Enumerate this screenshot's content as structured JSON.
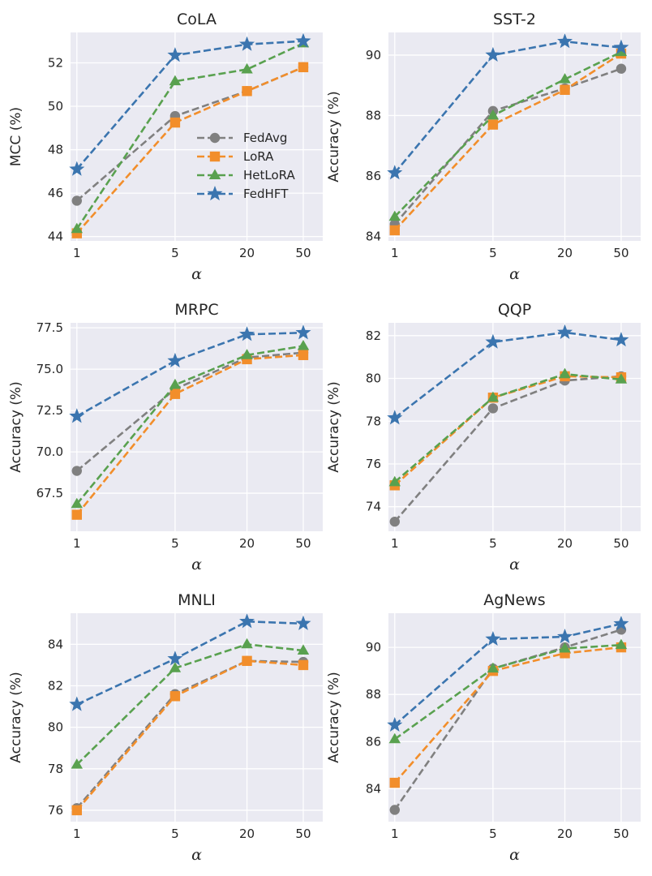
{
  "chart_data": {
    "type": "line",
    "xlabel": "α",
    "categories": [
      "1",
      "5",
      "20",
      "50"
    ],
    "series_styles": [
      {
        "name": "FedAvg",
        "color": "#808080",
        "marker": "circle"
      },
      {
        "name": "LoRA",
        "color": "#f28e2b",
        "marker": "square"
      },
      {
        "name": "HetLoRA",
        "color": "#59a14f",
        "marker": "triangle"
      },
      {
        "name": "FedHFT",
        "color": "#3b75af",
        "marker": "star"
      }
    ],
    "legend": {
      "location": "center-right",
      "panel": "CoLA"
    },
    "panels": [
      {
        "title": "CoLA",
        "ylabel": "MCC (%)",
        "ylim": [
          43.8,
          53.4
        ],
        "yticks": [
          "44",
          "46",
          "48",
          "50",
          "52"
        ],
        "series": [
          {
            "name": "FedAvg",
            "values": [
              45.65,
              49.55,
              50.7,
              51.8
            ]
          },
          {
            "name": "LoRA",
            "values": [
              44.15,
              49.25,
              50.7,
              51.8
            ]
          },
          {
            "name": "HetLoRA",
            "values": [
              44.35,
              51.15,
              51.7,
              52.9
            ]
          },
          {
            "name": "FedHFT",
            "values": [
              47.1,
              52.35,
              52.85,
              53.0
            ]
          }
        ]
      },
      {
        "title": "SST-2",
        "ylabel": "Accuracy (%)",
        "ylim": [
          83.85,
          90.75
        ],
        "yticks": [
          "84",
          "86",
          "88",
          "90"
        ],
        "series": [
          {
            "name": "FedAvg",
            "values": [
              84.4,
              88.15,
              88.9,
              89.55
            ]
          },
          {
            "name": "LoRA",
            "values": [
              84.2,
              87.7,
              88.85,
              90.05
            ]
          },
          {
            "name": "HetLoRA",
            "values": [
              84.65,
              88.0,
              89.2,
              90.1
            ]
          },
          {
            "name": "FedHFT",
            "values": [
              86.1,
              90.0,
              90.45,
              90.25
            ]
          }
        ]
      },
      {
        "title": "MRPC",
        "ylabel": "Accuracy (%)",
        "ylim": [
          65.2,
          77.8
        ],
        "yticks": [
          "67.5",
          "70.0",
          "72.5",
          "75.0",
          "77.5"
        ],
        "series": [
          {
            "name": "FedAvg",
            "values": [
              68.85,
              73.8,
              75.7,
              76.0
            ]
          },
          {
            "name": "LoRA",
            "values": [
              66.2,
              73.5,
              75.6,
              75.85
            ]
          },
          {
            "name": "HetLoRA",
            "values": [
              66.85,
              74.05,
              75.85,
              76.4
            ]
          },
          {
            "name": "FedHFT",
            "values": [
              72.15,
              75.5,
              77.1,
              77.2
            ]
          }
        ]
      },
      {
        "title": "QQP",
        "ylabel": "Accuracy (%)",
        "ylim": [
          72.85,
          82.6
        ],
        "yticks": [
          "74",
          "76",
          "78",
          "80",
          "82"
        ],
        "series": [
          {
            "name": "FedAvg",
            "values": [
              73.3,
              78.6,
              79.9,
              80.1
            ]
          },
          {
            "name": "LoRA",
            "values": [
              75.0,
              79.1,
              80.1,
              80.05
            ]
          },
          {
            "name": "HetLoRA",
            "values": [
              75.15,
              79.1,
              80.2,
              79.95
            ]
          },
          {
            "name": "FedHFT",
            "values": [
              78.15,
              81.7,
              82.15,
              81.8
            ]
          }
        ]
      },
      {
        "title": "MNLI",
        "ylabel": "Accuracy (%)",
        "ylim": [
          75.45,
          85.5
        ],
        "yticks": [
          "76",
          "78",
          "80",
          "82",
          "84"
        ],
        "series": [
          {
            "name": "FedAvg",
            "values": [
              76.1,
              81.6,
              83.2,
              83.15
            ]
          },
          {
            "name": "LoRA",
            "values": [
              76.0,
              81.5,
              83.2,
              83.0
            ]
          },
          {
            "name": "HetLoRA",
            "values": [
              78.2,
              82.85,
              84.0,
              83.7
            ]
          },
          {
            "name": "FedHFT",
            "values": [
              81.1,
              83.3,
              85.1,
              85.0
            ]
          }
        ]
      },
      {
        "title": "AgNews",
        "ylabel": "Accuracy (%)",
        "ylim": [
          82.6,
          91.45
        ],
        "yticks": [
          "84",
          "86",
          "88",
          "90"
        ],
        "series": [
          {
            "name": "FedAvg",
            "values": [
              83.1,
              89.1,
              90.0,
              90.75
            ]
          },
          {
            "name": "LoRA",
            "values": [
              84.25,
              89.0,
              89.75,
              90.0
            ]
          },
          {
            "name": "HetLoRA",
            "values": [
              86.1,
              89.1,
              89.95,
              90.1
            ]
          },
          {
            "name": "FedHFT",
            "values": [
              86.7,
              90.35,
              90.45,
              91.0
            ]
          }
        ]
      }
    ]
  }
}
